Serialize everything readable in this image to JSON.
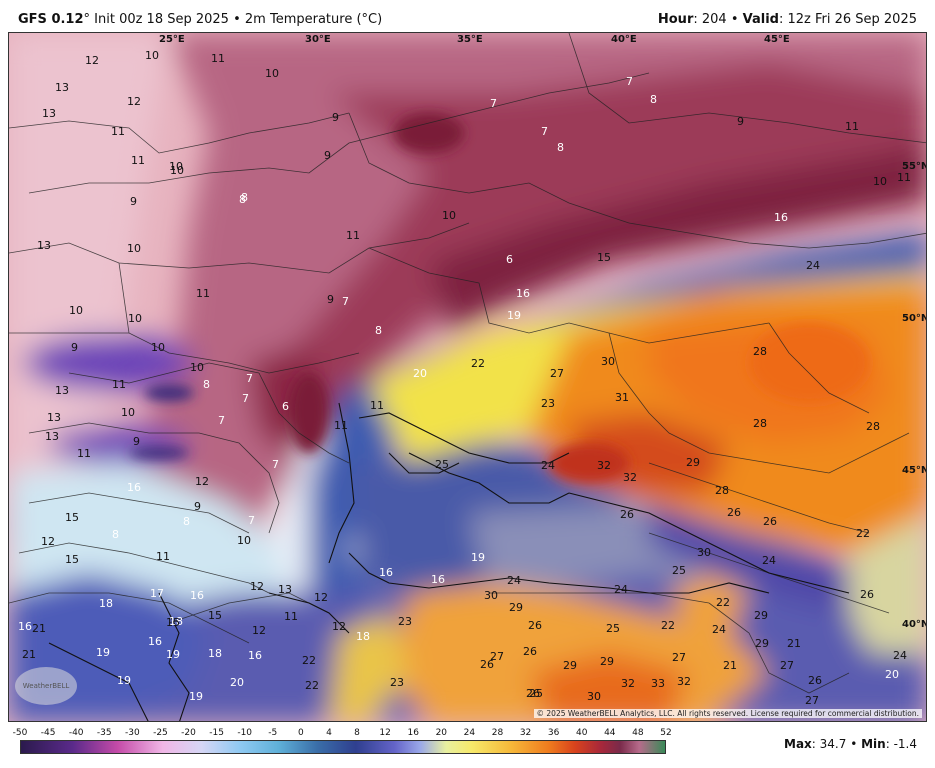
{
  "header": {
    "model": "GFS 0.12",
    "init": "° Init 00z 18 Sep 2025",
    "sep": "•",
    "param": "2m Temperature (°C)",
    "hour_label": "Hour",
    "hour": ": 204",
    "valid_label": "Valid",
    "valid": ": 12z Fri 26 Sep 2025"
  },
  "map": {
    "lon_labels": [
      "25°E",
      "30°E",
      "35°E",
      "40°E",
      "45°E"
    ],
    "lat_labels": [
      "55°N",
      "50°N",
      "45°N",
      "40°N"
    ],
    "copyright": "© 2025 WeatherBELL Analytics, LLC. All rights reserved. License required for commercial distribution.",
    "logo": "WeatherBELL",
    "values": [
      {
        "t": "12"
      },
      {
        "t": "10"
      },
      {
        "t": "11"
      },
      {
        "t": "10"
      },
      {
        "t": "13"
      },
      {
        "t": "12"
      },
      {
        "t": "7"
      },
      {
        "t": "8"
      },
      {
        "t": "7"
      },
      {
        "t": "13"
      },
      {
        "t": "9"
      },
      {
        "t": "9"
      },
      {
        "t": "11"
      },
      {
        "t": "7"
      },
      {
        "t": "8"
      },
      {
        "t": "11"
      },
      {
        "t": "11"
      },
      {
        "t": "10"
      },
      {
        "t": "9"
      },
      {
        "t": "55°N"
      },
      {
        "t": "10"
      },
      {
        "t": "10"
      },
      {
        "t": "11"
      },
      {
        "t": "9"
      },
      {
        "t": "8"
      },
      {
        "t": "8"
      },
      {
        "t": "10"
      },
      {
        "t": "16"
      },
      {
        "t": "13"
      },
      {
        "t": "10"
      },
      {
        "t": "11"
      },
      {
        "t": "6"
      },
      {
        "t": "15"
      },
      {
        "t": "24"
      },
      {
        "t": "11"
      },
      {
        "t": "16"
      },
      {
        "t": "9"
      },
      {
        "t": "7"
      },
      {
        "t": "10"
      },
      {
        "t": "10"
      },
      {
        "t": "8"
      },
      {
        "t": "19"
      },
      {
        "t": "9"
      },
      {
        "t": "10"
      },
      {
        "t": "28"
      },
      {
        "t": "22"
      },
      {
        "t": "30"
      },
      {
        "t": "13"
      },
      {
        "t": "11"
      },
      {
        "t": "10"
      },
      {
        "t": "8"
      },
      {
        "t": "7"
      },
      {
        "t": "27"
      },
      {
        "t": "20"
      },
      {
        "t": "13"
      },
      {
        "t": "10"
      },
      {
        "t": "7"
      },
      {
        "t": "6"
      },
      {
        "t": "11"
      },
      {
        "t": "23"
      },
      {
        "t": "31"
      },
      {
        "t": "28"
      },
      {
        "t": "28"
      },
      {
        "t": "13"
      },
      {
        "t": "7"
      },
      {
        "t": "11"
      },
      {
        "t": "9"
      },
      {
        "t": "25"
      },
      {
        "t": "24"
      },
      {
        "t": "32"
      },
      {
        "t": "29"
      },
      {
        "t": "11"
      },
      {
        "t": "7"
      },
      {
        "t": "32"
      },
      {
        "t": "16"
      },
      {
        "t": "12"
      },
      {
        "t": "28"
      },
      {
        "t": "15"
      },
      {
        "t": "9"
      },
      {
        "t": "8"
      },
      {
        "t": "7"
      },
      {
        "t": "26"
      },
      {
        "t": "26"
      },
      {
        "t": "26"
      },
      {
        "t": "22"
      },
      {
        "t": "12"
      },
      {
        "t": "8"
      },
      {
        "t": "10"
      },
      {
        "t": "15"
      },
      {
        "t": "11"
      },
      {
        "t": "19"
      },
      {
        "t": "30"
      },
      {
        "t": "24"
      },
      {
        "t": "25"
      },
      {
        "t": "16"
      },
      {
        "t": "16"
      },
      {
        "t": "24"
      },
      {
        "t": "24"
      },
      {
        "t": "12"
      },
      {
        "t": "13"
      },
      {
        "t": "12"
      },
      {
        "t": "17"
      },
      {
        "t": "16"
      },
      {
        "t": "30"
      },
      {
        "t": "22"
      },
      {
        "t": "26"
      },
      {
        "t": "26"
      },
      {
        "t": "16"
      },
      {
        "t": "18"
      },
      {
        "t": "29"
      },
      {
        "t": "18"
      },
      {
        "t": "29"
      },
      {
        "t": "21"
      },
      {
        "t": "15"
      },
      {
        "t": "15"
      },
      {
        "t": "11"
      },
      {
        "t": "12"
      },
      {
        "t": "12"
      },
      {
        "t": "18"
      },
      {
        "t": "26"
      },
      {
        "t": "25"
      },
      {
        "t": "23"
      },
      {
        "t": "24"
      },
      {
        "t": "22"
      },
      {
        "t": "29"
      },
      {
        "t": "21"
      },
      {
        "t": "21"
      },
      {
        "t": "16"
      },
      {
        "t": "19"
      },
      {
        "t": "18"
      },
      {
        "t": "16"
      },
      {
        "t": "22"
      },
      {
        "t": "27"
      },
      {
        "t": "29"
      },
      {
        "t": "27"
      },
      {
        "t": "21"
      },
      {
        "t": "27"
      },
      {
        "t": "26"
      },
      {
        "t": "20"
      },
      {
        "t": "24"
      },
      {
        "t": "19"
      },
      {
        "t": "20"
      },
      {
        "t": "19"
      },
      {
        "t": "23"
      },
      {
        "t": "22"
      },
      {
        "t": "26"
      },
      {
        "t": "25"
      },
      {
        "t": "29"
      },
      {
        "t": "32"
      },
      {
        "t": "33"
      },
      {
        "t": "32"
      },
      {
        "t": "27"
      },
      {
        "t": "19"
      },
      {
        "t": "26"
      },
      {
        "t": "30"
      }
    ]
  },
  "colorbar": {
    "ticks": [
      "-50",
      "-45",
      "-40",
      "-35",
      "-30",
      "-25",
      "-20",
      "-15",
      "-10",
      "-5",
      "0",
      "4",
      "8",
      "12",
      "16",
      "20",
      "24",
      "28",
      "32",
      "36",
      "40",
      "44",
      "48",
      "52"
    ]
  },
  "footer": {
    "max_label": "Max",
    "max": ": 34.7",
    "sep": "•",
    "min_label": "Min",
    "min": ": -1.4"
  },
  "colors": {
    "cold_maroon": "#8e2a47",
    "pink": "#e9aac4",
    "purple": "#4a2aa8",
    "blue": "#3c4fa6",
    "yellow": "#f2e24a",
    "orange": "#f08a1e",
    "red_orange": "#d44b1a"
  }
}
